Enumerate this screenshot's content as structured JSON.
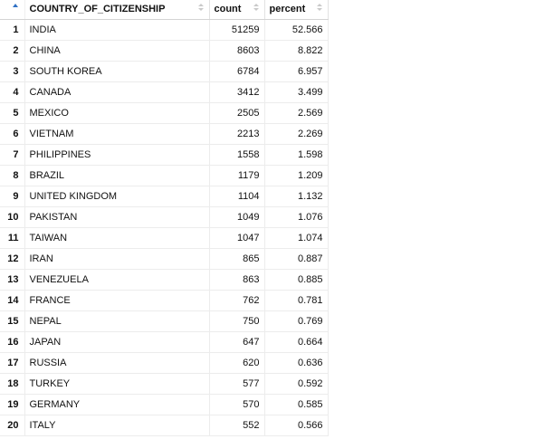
{
  "columns": {
    "country": "COUNTRY_OF_CITIZENSHIP",
    "count": "count",
    "percent": "percent"
  },
  "rows": [
    {
      "index": "1",
      "country": "INDIA",
      "count": "51259",
      "percent": "52.566"
    },
    {
      "index": "2",
      "country": "CHINA",
      "count": "8603",
      "percent": "8.822"
    },
    {
      "index": "3",
      "country": "SOUTH KOREA",
      "count": "6784",
      "percent": "6.957"
    },
    {
      "index": "4",
      "country": "CANADA",
      "count": "3412",
      "percent": "3.499"
    },
    {
      "index": "5",
      "country": "MEXICO",
      "count": "2505",
      "percent": "2.569"
    },
    {
      "index": "6",
      "country": "VIETNAM",
      "count": "2213",
      "percent": "2.269"
    },
    {
      "index": "7",
      "country": "PHILIPPINES",
      "count": "1558",
      "percent": "1.598"
    },
    {
      "index": "8",
      "country": "BRAZIL",
      "count": "1179",
      "percent": "1.209"
    },
    {
      "index": "9",
      "country": "UNITED KINGDOM",
      "count": "1104",
      "percent": "1.132"
    },
    {
      "index": "10",
      "country": "PAKISTAN",
      "count": "1049",
      "percent": "1.076"
    },
    {
      "index": "11",
      "country": "TAIWAN",
      "count": "1047",
      "percent": "1.074"
    },
    {
      "index": "12",
      "country": "IRAN",
      "count": "865",
      "percent": "0.887"
    },
    {
      "index": "13",
      "country": "VENEZUELA",
      "count": "863",
      "percent": "0.885"
    },
    {
      "index": "14",
      "country": "FRANCE",
      "count": "762",
      "percent": "0.781"
    },
    {
      "index": "15",
      "country": "NEPAL",
      "count": "750",
      "percent": "0.769"
    },
    {
      "index": "16",
      "country": "JAPAN",
      "count": "647",
      "percent": "0.664"
    },
    {
      "index": "17",
      "country": "RUSSIA",
      "count": "620",
      "percent": "0.636"
    },
    {
      "index": "18",
      "country": "TURKEY",
      "count": "577",
      "percent": "0.592"
    },
    {
      "index": "19",
      "country": "GERMANY",
      "count": "570",
      "percent": "0.585"
    },
    {
      "index": "20",
      "country": "ITALY",
      "count": "552",
      "percent": "0.566"
    }
  ],
  "colors": {
    "accent": "#2f70c4",
    "grid_line": "#ececec",
    "header_border": "#d4d4d4"
  },
  "icons": {
    "index_sort": "triangle-up-icon",
    "column_sort": "sort-arrows-icon"
  }
}
